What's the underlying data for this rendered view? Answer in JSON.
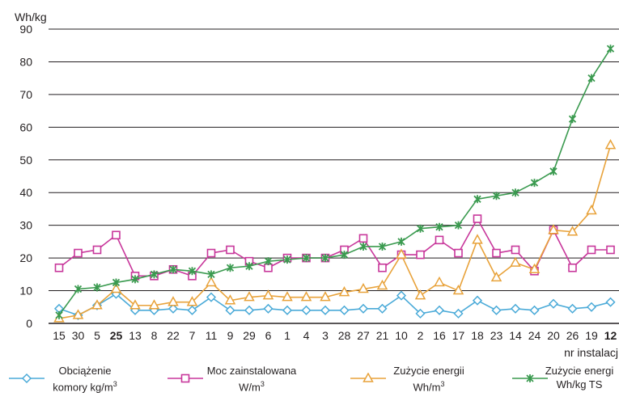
{
  "chart_data": {
    "type": "line",
    "ylabel": "Wh/kg",
    "xlabel": "nr instalacj",
    "ylim": [
      0,
      90
    ],
    "yticks": [
      0,
      10,
      20,
      30,
      40,
      50,
      60,
      70,
      80,
      90
    ],
    "grid": "horizontal",
    "bold_categories": [
      "25",
      "12"
    ],
    "categories": [
      "15",
      "30",
      "5",
      "25",
      "13",
      "8",
      "22",
      "7",
      "11",
      "9",
      "29",
      "6",
      "1",
      "4",
      "3",
      "28",
      "27",
      "21",
      "10",
      "2",
      "16",
      "17",
      "18",
      "23",
      "14",
      "24",
      "20",
      "26",
      "19",
      "12"
    ],
    "series": [
      {
        "key": "obciazenie",
        "label_line1": "Obciążenie",
        "label_line2_text": "komory kg/m",
        "label_line2_sup": "3",
        "color": "#4aaad8",
        "marker": "diamond",
        "values": [
          4.5,
          2.5,
          5.5,
          9,
          4,
          4,
          4.5,
          4,
          8,
          4,
          4,
          4.5,
          4,
          4,
          4,
          4,
          4.5,
          4.5,
          8.5,
          3,
          4,
          3,
          7,
          4,
          4.5,
          4,
          6,
          4.5,
          5,
          6.5
        ]
      },
      {
        "key": "moc",
        "label_line1": "Moc zainstalowana",
        "label_line2_text": "W/m",
        "label_line2_sup": "3",
        "color": "#c8379b",
        "marker": "square",
        "values": [
          17,
          21.5,
          22.5,
          27,
          14.5,
          14.5,
          16.5,
          14.5,
          21.5,
          22.5,
          19,
          17,
          20,
          20,
          20,
          22.5,
          26,
          17,
          21,
          21,
          25.5,
          21.5,
          32,
          21.5,
          22.5,
          16,
          28.5,
          17,
          22.5,
          22.5
        ]
      },
      {
        "key": "zuzycie_m3",
        "label_line1": "Zużycie energii",
        "label_line2_text": "Wh/m",
        "label_line2_sup": "3",
        "color": "#e8a23a",
        "marker": "triangle",
        "values": [
          1.5,
          2.5,
          5.5,
          10.5,
          5.5,
          5.5,
          6.5,
          6.5,
          12.5,
          7,
          8,
          8.5,
          8,
          8,
          8,
          9.5,
          10.5,
          11.5,
          21,
          8.5,
          12.5,
          10,
          25.5,
          14,
          18.5,
          16.5,
          28.5,
          28,
          34.5,
          54.5
        ]
      },
      {
        "key": "zuzycie_kg",
        "label_line1": "Zużycie energi",
        "label_line2_text": "Wh/kg TS",
        "label_line2_sup": "",
        "color": "#3a9a4f",
        "marker": "asterisk",
        "values": [
          2.5,
          10.5,
          11,
          12.5,
          13.5,
          15,
          16.5,
          16,
          15,
          17,
          17.5,
          19,
          19.5,
          20,
          20,
          21,
          23.5,
          23.5,
          25,
          29,
          29.5,
          30,
          38,
          39,
          40,
          43,
          46.5,
          62.5,
          75,
          84
        ]
      }
    ]
  }
}
